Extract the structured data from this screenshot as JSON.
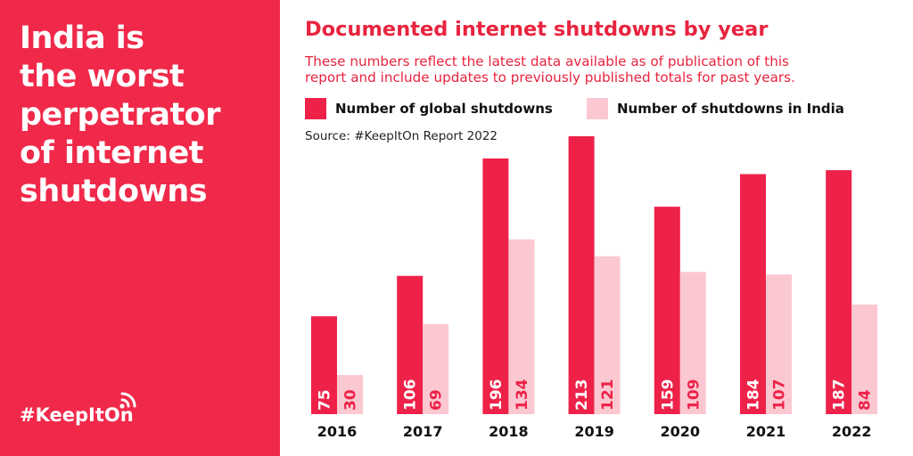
{
  "headline": [
    "India is",
    "the worst",
    "perpetrator",
    "of internet",
    "shutdowns"
  ],
  "hashtag": "#KeepItOn",
  "colors": {
    "panel": "#f0294a",
    "global": "#ee2249",
    "india": "#fbc8d1",
    "title": "#e8243f"
  },
  "chart_data": {
    "type": "bar",
    "title": "Documented internet shutdowns by year",
    "subtitle": [
      "These numbers reflect the latest data available as of publication of this",
      "report and include updates to previously published totals for past years."
    ],
    "source": "Source: #KeepItOn Report 2022",
    "categories": [
      "2016",
      "2017",
      "2018",
      "2019",
      "2020",
      "2021",
      "2022"
    ],
    "series": [
      {
        "name": "Number of global shutdowns",
        "values": [
          75,
          106,
          196,
          213,
          159,
          184,
          187
        ]
      },
      {
        "name": "Number of shutdowns in India",
        "values": [
          30,
          69,
          134,
          121,
          109,
          107,
          84
        ]
      }
    ],
    "ylim": [
      0,
      213
    ],
    "legend": "top",
    "grid": false
  }
}
